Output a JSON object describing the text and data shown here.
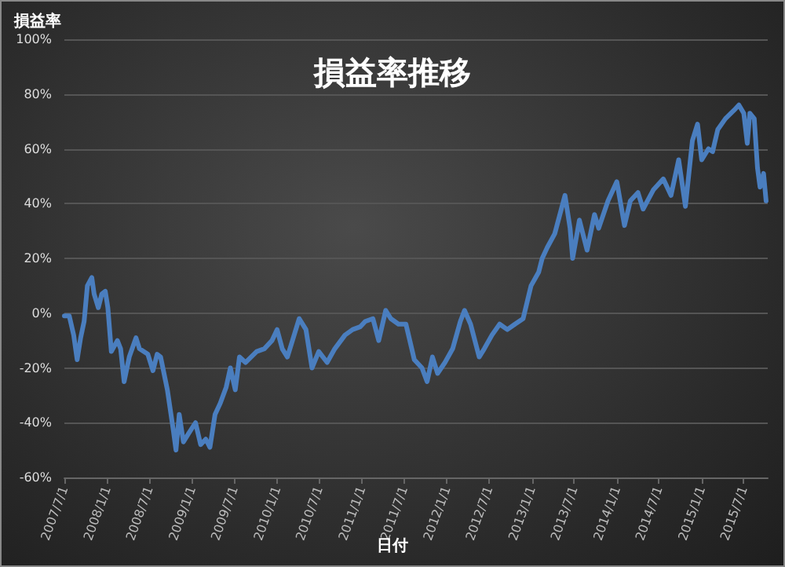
{
  "chart_data": {
    "type": "line",
    "title": "損益率推移",
    "xlabel": "日付",
    "ylabel": "損益率",
    "x": [
      "2007-07-01",
      "2007-07-22",
      "2007-08-10",
      "2007-08-25",
      "2007-09-09",
      "2007-09-24",
      "2007-10-08",
      "2007-10-27",
      "2007-11-06",
      "2007-11-24",
      "2007-12-09",
      "2007-12-24",
      "2008-01-04",
      "2008-01-19",
      "2008-02-14",
      "2008-02-28",
      "2008-03-14",
      "2008-04-05",
      "2008-05-04",
      "2008-05-19",
      "2008-06-24",
      "2008-07-16",
      "2008-08-03",
      "2008-08-18",
      "2008-09-16",
      "2008-10-12",
      "2008-10-23",
      "2008-11-06",
      "2008-11-24",
      "2008-12-16",
      "2009-01-15",
      "2009-02-06",
      "2009-02-28",
      "2009-03-18",
      "2009-04-09",
      "2009-05-01",
      "2009-05-27",
      "2009-06-14",
      "2009-07-05",
      "2009-07-23",
      "2009-08-18",
      "2009-10-05",
      "2009-11-07",
      "2009-12-10",
      "2010-01-01",
      "2010-01-23",
      "2010-02-14",
      "2010-03-08",
      "2010-04-06",
      "2010-05-05",
      "2010-05-31",
      "2010-06-29",
      "2010-08-04",
      "2010-09-06",
      "2010-10-20",
      "2010-11-22",
      "2010-12-24",
      "2011-01-15",
      "2011-02-17",
      "2011-03-14",
      "2011-04-13",
      "2011-05-05",
      "2011-06-07",
      "2011-07-09",
      "2011-08-14",
      "2011-09-16",
      "2011-10-08",
      "2011-10-31",
      "2011-11-22",
      "2011-12-24",
      "2012-01-26",
      "2012-02-28",
      "2012-03-17",
      "2012-04-12",
      "2012-05-19",
      "2012-06-10",
      "2012-07-13",
      "2012-08-15",
      "2012-09-17",
      "2012-10-20",
      "2012-11-24",
      "2012-12-28",
      "2013-01-30",
      "2013-02-14",
      "2013-03-08",
      "2013-04-09",
      "2013-05-23",
      "2013-06-14",
      "2013-06-25",
      "2013-07-24",
      "2013-08-26",
      "2013-09-27",
      "2013-10-15",
      "2013-11-24",
      "2014-01-01",
      "2014-02-03",
      "2014-02-28",
      "2014-04-02",
      "2014-04-24",
      "2014-06-07",
      "2014-07-20",
      "2014-08-22",
      "2014-09-24",
      "2014-10-23",
      "2014-11-22",
      "2014-12-14",
      "2015-01-01",
      "2015-01-30",
      "2015-02-17",
      "2015-03-11",
      "2015-04-13",
      "2015-05-19",
      "2015-06-10",
      "2015-07-01",
      "2015-07-16",
      "2015-07-27",
      "2015-08-15",
      "2015-08-29",
      "2015-09-09",
      "2015-09-24",
      "2015-10-05"
    ],
    "series": [
      {
        "color": "#4a7ebf",
        "values": [
          -1,
          -1,
          -8,
          -17,
          -9,
          -3,
          10,
          13,
          7,
          2,
          7,
          8,
          2,
          -14,
          -10,
          -13,
          -25,
          -16,
          -9,
          -13,
          -15,
          -21,
          -15,
          -16,
          -28,
          -43,
          -50,
          -37,
          -47,
          -44,
          -40,
          -48,
          -46,
          -49,
          -37,
          -33,
          -27,
          -20,
          -28,
          -16,
          -18,
          -14,
          -13,
          -10,
          -6,
          -13,
          -16,
          -10,
          -2,
          -6,
          -20,
          -14,
          -18,
          -13,
          -8,
          -6,
          -5,
          -3,
          -2,
          -10,
          1,
          -2,
          -4,
          -4,
          -17,
          -20,
          -25,
          -16,
          -22,
          -18,
          -13,
          -3,
          1,
          -4,
          -16,
          -13,
          -8,
          -4,
          -6,
          -4,
          -2,
          10,
          15,
          20,
          24,
          29,
          43,
          31,
          20,
          34,
          23,
          36,
          31,
          41,
          48,
          32,
          41,
          44,
          38,
          45,
          49,
          43,
          56,
          39,
          63,
          69,
          56,
          60,
          59,
          67,
          71,
          74,
          76,
          73,
          62,
          73,
          71,
          53,
          46,
          51,
          41
        ]
      }
    ],
    "xlim": [
      "2007-07-01",
      "2015-10-12"
    ],
    "xticks": [
      {
        "value": "2007-07-01",
        "label": "2007/7/1"
      },
      {
        "value": "2008-01-01",
        "label": "2008/1/1"
      },
      {
        "value": "2008-07-01",
        "label": "2008/7/1"
      },
      {
        "value": "2009-01-01",
        "label": "2009/1/1"
      },
      {
        "value": "2009-07-01",
        "label": "2009/7/1"
      },
      {
        "value": "2010-01-01",
        "label": "2010/1/1"
      },
      {
        "value": "2010-07-01",
        "label": "2010/7/1"
      },
      {
        "value": "2011-01-01",
        "label": "2011/1/1"
      },
      {
        "value": "2011-07-01",
        "label": "2011/7/1"
      },
      {
        "value": "2012-01-01",
        "label": "2012/1/1"
      },
      {
        "value": "2012-07-01",
        "label": "2012/7/1"
      },
      {
        "value": "2013-01-01",
        "label": "2013/1/1"
      },
      {
        "value": "2013-07-01",
        "label": "2013/7/1"
      },
      {
        "value": "2014-01-01",
        "label": "2014/1/1"
      },
      {
        "value": "2014-07-01",
        "label": "2014/7/1"
      },
      {
        "value": "2015-01-01",
        "label": "2015/1/1"
      },
      {
        "value": "2015-07-01",
        "label": "2015/7/1"
      }
    ],
    "ylim": [
      -60,
      100
    ],
    "yticks": [
      {
        "value": -60,
        "label": "-60%"
      },
      {
        "value": -40,
        "label": "-40%"
      },
      {
        "value": -20,
        "label": "-20%"
      },
      {
        "value": 0,
        "label": "0%"
      },
      {
        "value": 20,
        "label": "20%"
      },
      {
        "value": 40,
        "label": "40%"
      },
      {
        "value": 60,
        "label": "60%"
      },
      {
        "value": 80,
        "label": "80%"
      },
      {
        "value": 100,
        "label": "100%"
      }
    ],
    "grid": "y",
    "marker": "none",
    "line_style": "solid"
  }
}
